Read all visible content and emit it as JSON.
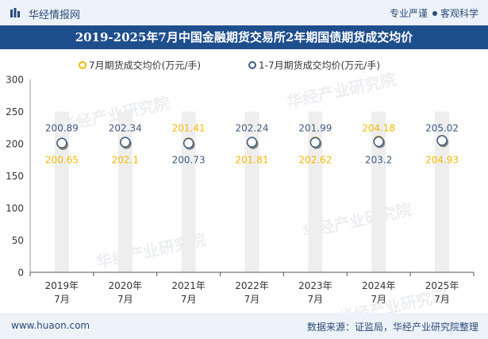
{
  "header": {
    "brand": "华经情报网",
    "tagline_left": "专业严谨",
    "tagline_right": "客观科学"
  },
  "title": "2019-2025年7月中国金融期货交易所2年期国债期货成交均价",
  "footer": {
    "website": "www.huaon.com",
    "source": "数据来源：证监局，华经产业研究院整理"
  },
  "watermark": "华经产业研究院",
  "colors": {
    "series1": "#f5b800",
    "series2": "#3d5a80",
    "title_bg": "#1f4e8c",
    "bar_bg": "#eeeeee"
  },
  "chart_data": {
    "type": "scatter",
    "categories": [
      [
        "2019年",
        "7月"
      ],
      [
        "2020年",
        "7月"
      ],
      [
        "2021年",
        "7月"
      ],
      [
        "2022年",
        "7月"
      ],
      [
        "2023年",
        "7月"
      ],
      [
        "2024年",
        "7月"
      ],
      [
        "2025年",
        "7月"
      ]
    ],
    "series": [
      {
        "name": "7月期货成交均价(万元/手)",
        "values": [
          200.65,
          202.1,
          201.41,
          201.81,
          202.62,
          204.18,
          204.93
        ]
      },
      {
        "name": "1-7月期货成交均价(万元/手)",
        "values": [
          200.89,
          202.34,
          200.73,
          202.24,
          201.99,
          203.2,
          205.02
        ]
      }
    ],
    "label_text": {
      "above": [
        "200.89",
        "202.34",
        "201.41",
        "202.24",
        "201.99",
        "204.18",
        "205.02"
      ],
      "below": [
        "200.65",
        "202.1",
        "200.73",
        "201.81",
        "202.62",
        "203.2",
        "204.93"
      ]
    },
    "label_series_above": [
      1,
      1,
      0,
      1,
      1,
      0,
      1
    ],
    "ylim": [
      0,
      300
    ],
    "yticks": [
      "0",
      "50",
      "100",
      "150",
      "200",
      "250",
      "300"
    ],
    "legend_position": "top-center",
    "grid": false
  }
}
